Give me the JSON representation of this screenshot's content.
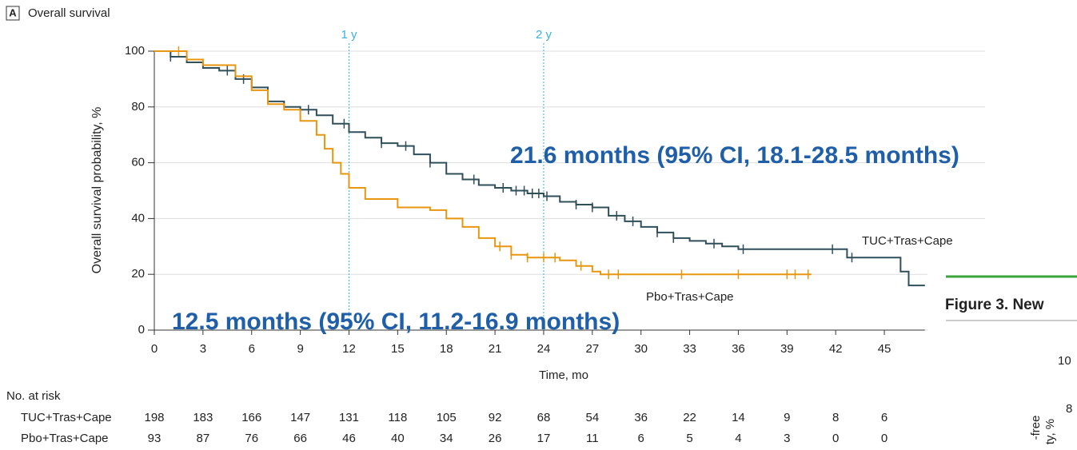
{
  "chart_data": {
    "type": "km",
    "panel": "A",
    "title": "Overall survival",
    "x_label": "Time, mo",
    "y_label": "Overall survival probability, %",
    "xlim": [
      0,
      47.5
    ],
    "ylim": [
      0,
      100
    ],
    "xticks": [
      0,
      3,
      6,
      9,
      12,
      15,
      18,
      21,
      24,
      27,
      30,
      33,
      36,
      39,
      42,
      45
    ],
    "yticks": [
      0,
      20,
      40,
      60,
      80,
      100
    ],
    "grid": true,
    "reference_lines": [
      {
        "x": 12,
        "label": "1 y"
      },
      {
        "x": 24,
        "label": "2 y"
      }
    ],
    "series": [
      {
        "name": "TUC+Tras+Cape",
        "color": "#2f4f5a",
        "x": [
          0,
          1,
          2,
          3,
          4,
          5,
          6,
          7,
          8,
          9,
          10,
          11,
          12,
          13,
          14,
          15,
          16,
          17,
          18,
          19,
          20,
          21,
          22,
          23,
          24,
          25,
          26,
          27,
          28,
          29,
          30,
          31,
          32,
          33,
          34,
          35,
          36,
          42.7,
          46,
          46.5,
          47.5
        ],
        "values": [
          100,
          98,
          96,
          94,
          93,
          90,
          87,
          82,
          80,
          79,
          77,
          74,
          71,
          69,
          67,
          66,
          63,
          60,
          56,
          54,
          52,
          51,
          50,
          49,
          48,
          46,
          45,
          44,
          41,
          39,
          37,
          35,
          33,
          32,
          31,
          30,
          29,
          26,
          21,
          16,
          16
        ],
        "censored": [
          1,
          4.5,
          5.5,
          9.5,
          11.7,
          14,
          15.5,
          17,
          19.7,
          21.5,
          22.3,
          22.8,
          23.3,
          23.7,
          24.2,
          26,
          27,
          28.5,
          29.5,
          31,
          32,
          34.5,
          36.3,
          41.8,
          43
        ]
      },
      {
        "name": "Pbo+Tras+Cape",
        "color": "#e8950f",
        "x": [
          0,
          2,
          3,
          5,
          6,
          7,
          8,
          9,
          10,
          10.5,
          11,
          11.5,
          12,
          13,
          15,
          17,
          18,
          19,
          20,
          21,
          22,
          23,
          25,
          26,
          27,
          27.5,
          40.5
        ],
        "values": [
          100,
          97,
          95,
          91,
          86,
          81,
          79,
          75,
          70,
          65,
          60,
          56,
          51,
          47,
          44,
          43,
          40,
          37,
          33,
          30,
          27,
          26,
          25,
          23,
          21,
          20,
          20
        ],
        "censored": [
          1.5,
          21.3,
          22,
          23,
          24,
          24.7,
          26.3,
          28,
          28.6,
          32.5,
          36,
          39,
          39.5,
          40.3
        ]
      }
    ],
    "annotations": [
      "21.6 months (95% CI, 18.1-28.5 months)",
      "12.5 months (95% CI, 11.2-16.9 months)"
    ],
    "risk_table": {
      "title": "No. at risk",
      "rows": [
        [
          198,
          183,
          166,
          147,
          131,
          118,
          105,
          92,
          68,
          54,
          36,
          22,
          14,
          9,
          8,
          6
        ],
        [
          93,
          87,
          76,
          66,
          46,
          40,
          34,
          26,
          17,
          11,
          6,
          5,
          4,
          3,
          0,
          0
        ]
      ]
    }
  },
  "adjacent_figure": {
    "title": "Figure 3. New",
    "tick_labels": [
      "10",
      "8"
    ],
    "axis_fragments": [
      "-free",
      "ty, %"
    ]
  }
}
